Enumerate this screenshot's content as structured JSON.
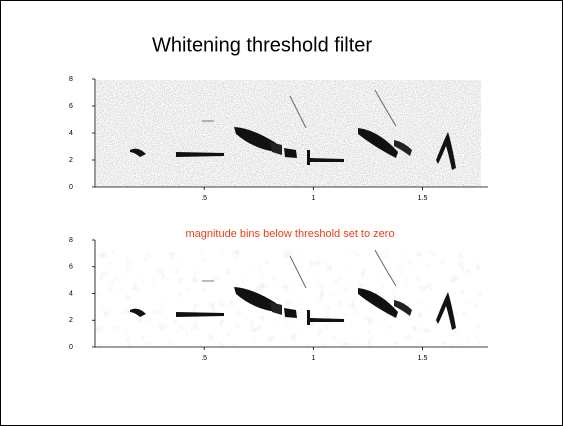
{
  "title": "Whitening threshold filter",
  "note": "magnitude bins below threshold set to zero",
  "panels": [
    {
      "xlim": [
        0,
        1.8
      ],
      "ylim": [
        0,
        8
      ],
      "xticks": [
        {
          "value": 0.5,
          "label": ".5"
        },
        1,
        1.5
      ],
      "yticks": [
        0,
        2,
        4,
        6,
        8
      ]
    },
    {
      "xlim": [
        0,
        1.8
      ],
      "ylim": [
        0,
        8
      ],
      "xticks": [
        {
          "value": 0.5,
          "label": ".5"
        },
        1,
        1.5
      ],
      "yticks": [
        0,
        2,
        4,
        6,
        8
      ]
    }
  ]
}
